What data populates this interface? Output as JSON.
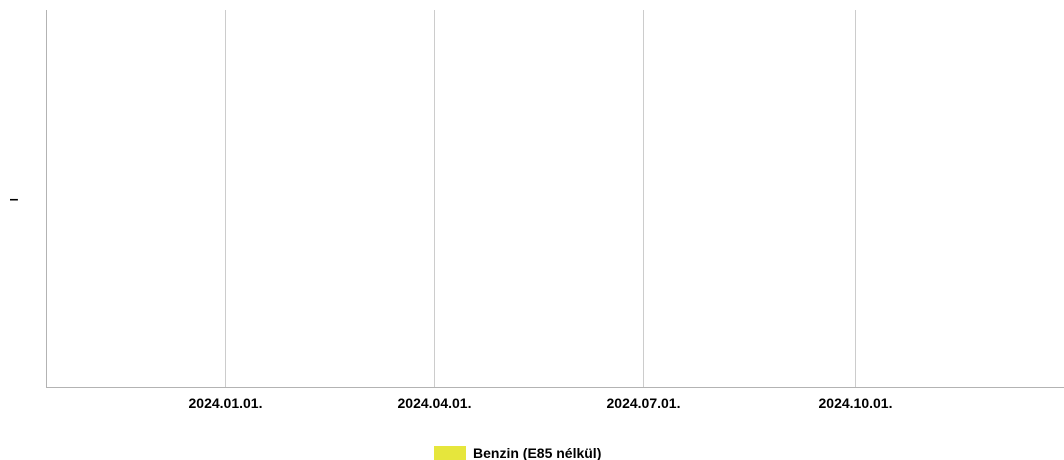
{
  "chart_data": {
    "type": "line",
    "title": "",
    "xlabel": "",
    "ylabel": "",
    "x_ticks": [
      "2024.01.01.",
      "2024.04.01.",
      "2024.07.01.",
      "2024.10.01."
    ],
    "x_tick_dates": [
      "2024-01-01",
      "2024-04-01",
      "2024-07-01",
      "2024-10-01"
    ],
    "xlim": [
      "2023-10-15",
      "2024-12-31"
    ],
    "y_ticks": [
      "–"
    ],
    "grid": {
      "vertical": true,
      "horizontal": false
    },
    "legend_position": "bottom-center",
    "series": [
      {
        "name": "Benzin (E85 nélkül)",
        "color": "#e6e63c",
        "x": [],
        "y": []
      }
    ],
    "colors": {
      "gridline": "#cccccc",
      "axis": "#b3b3b3",
      "text": "#000000"
    }
  }
}
